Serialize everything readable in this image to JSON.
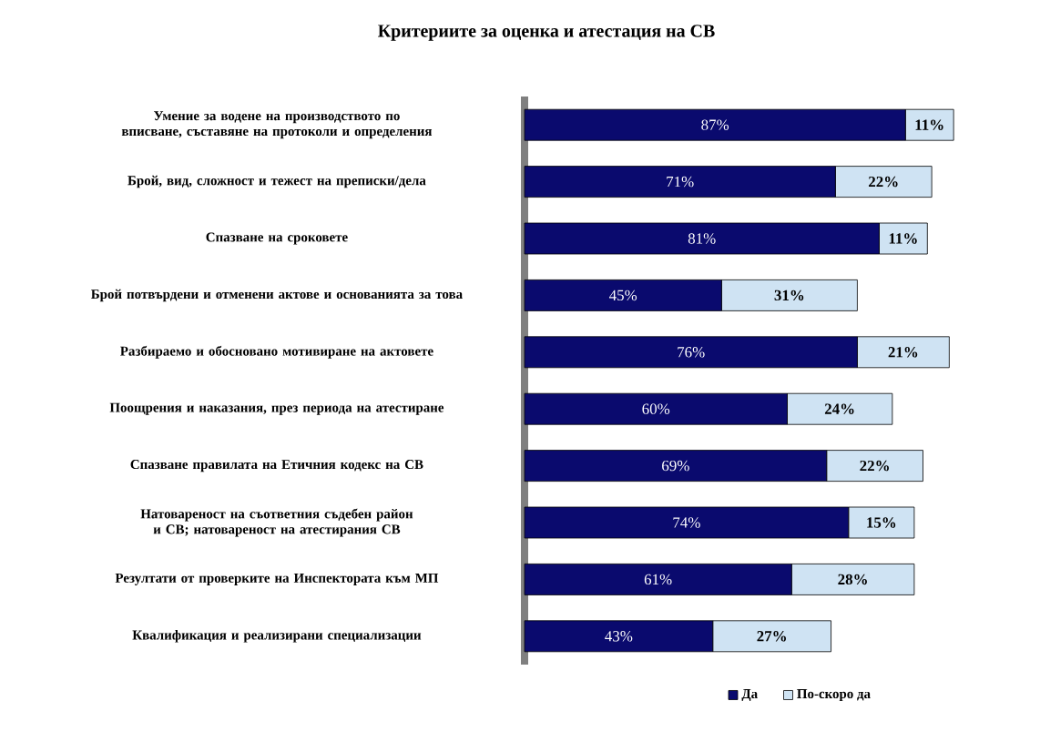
{
  "chart_data": {
    "type": "bar",
    "orientation": "horizontal",
    "stacked": true,
    "title": "Критериите за оценка и атестация на СВ",
    "categories": [
      "Умение за водене на производството по вписване, съставяне на протоколи и определения",
      "Брой, вид, сложност и тежест на преписки/дела",
      "Спазване на сроковете",
      "Брой потвърдени и отменени актове и основанията за това",
      "Разбираемо и обосновано мотивиране на актовете",
      "Поощрения и наказания, през периода на атестиране",
      "Спазване правилата на Етичния кодекс на СВ",
      "Натовареност на съответния съдебен район и СВ; натовареност на атестирания СВ",
      "Резултати от проверките на Инспектората към МП",
      "Квалификация и реализирани специализации"
    ],
    "series": [
      {
        "name": "Да",
        "color": "#0a0a6e",
        "values": [
          87,
          71,
          81,
          45,
          76,
          60,
          69,
          74,
          61,
          43
        ],
        "value_labels": [
          "87%",
          "71%",
          "81%",
          "45%",
          "76%",
          "60%",
          "69%",
          "74%",
          "61%",
          "43%"
        ]
      },
      {
        "name": "По-скоро да",
        "color": "#cfe3f3",
        "values": [
          11,
          22,
          11,
          31,
          21,
          24,
          22,
          15,
          28,
          27
        ],
        "value_labels": [
          "11%",
          "22%",
          "11%",
          "31%",
          "21%",
          "24%",
          "22%",
          "15%",
          "28%",
          "27%"
        ]
      }
    ],
    "legend": "bottom"
  }
}
